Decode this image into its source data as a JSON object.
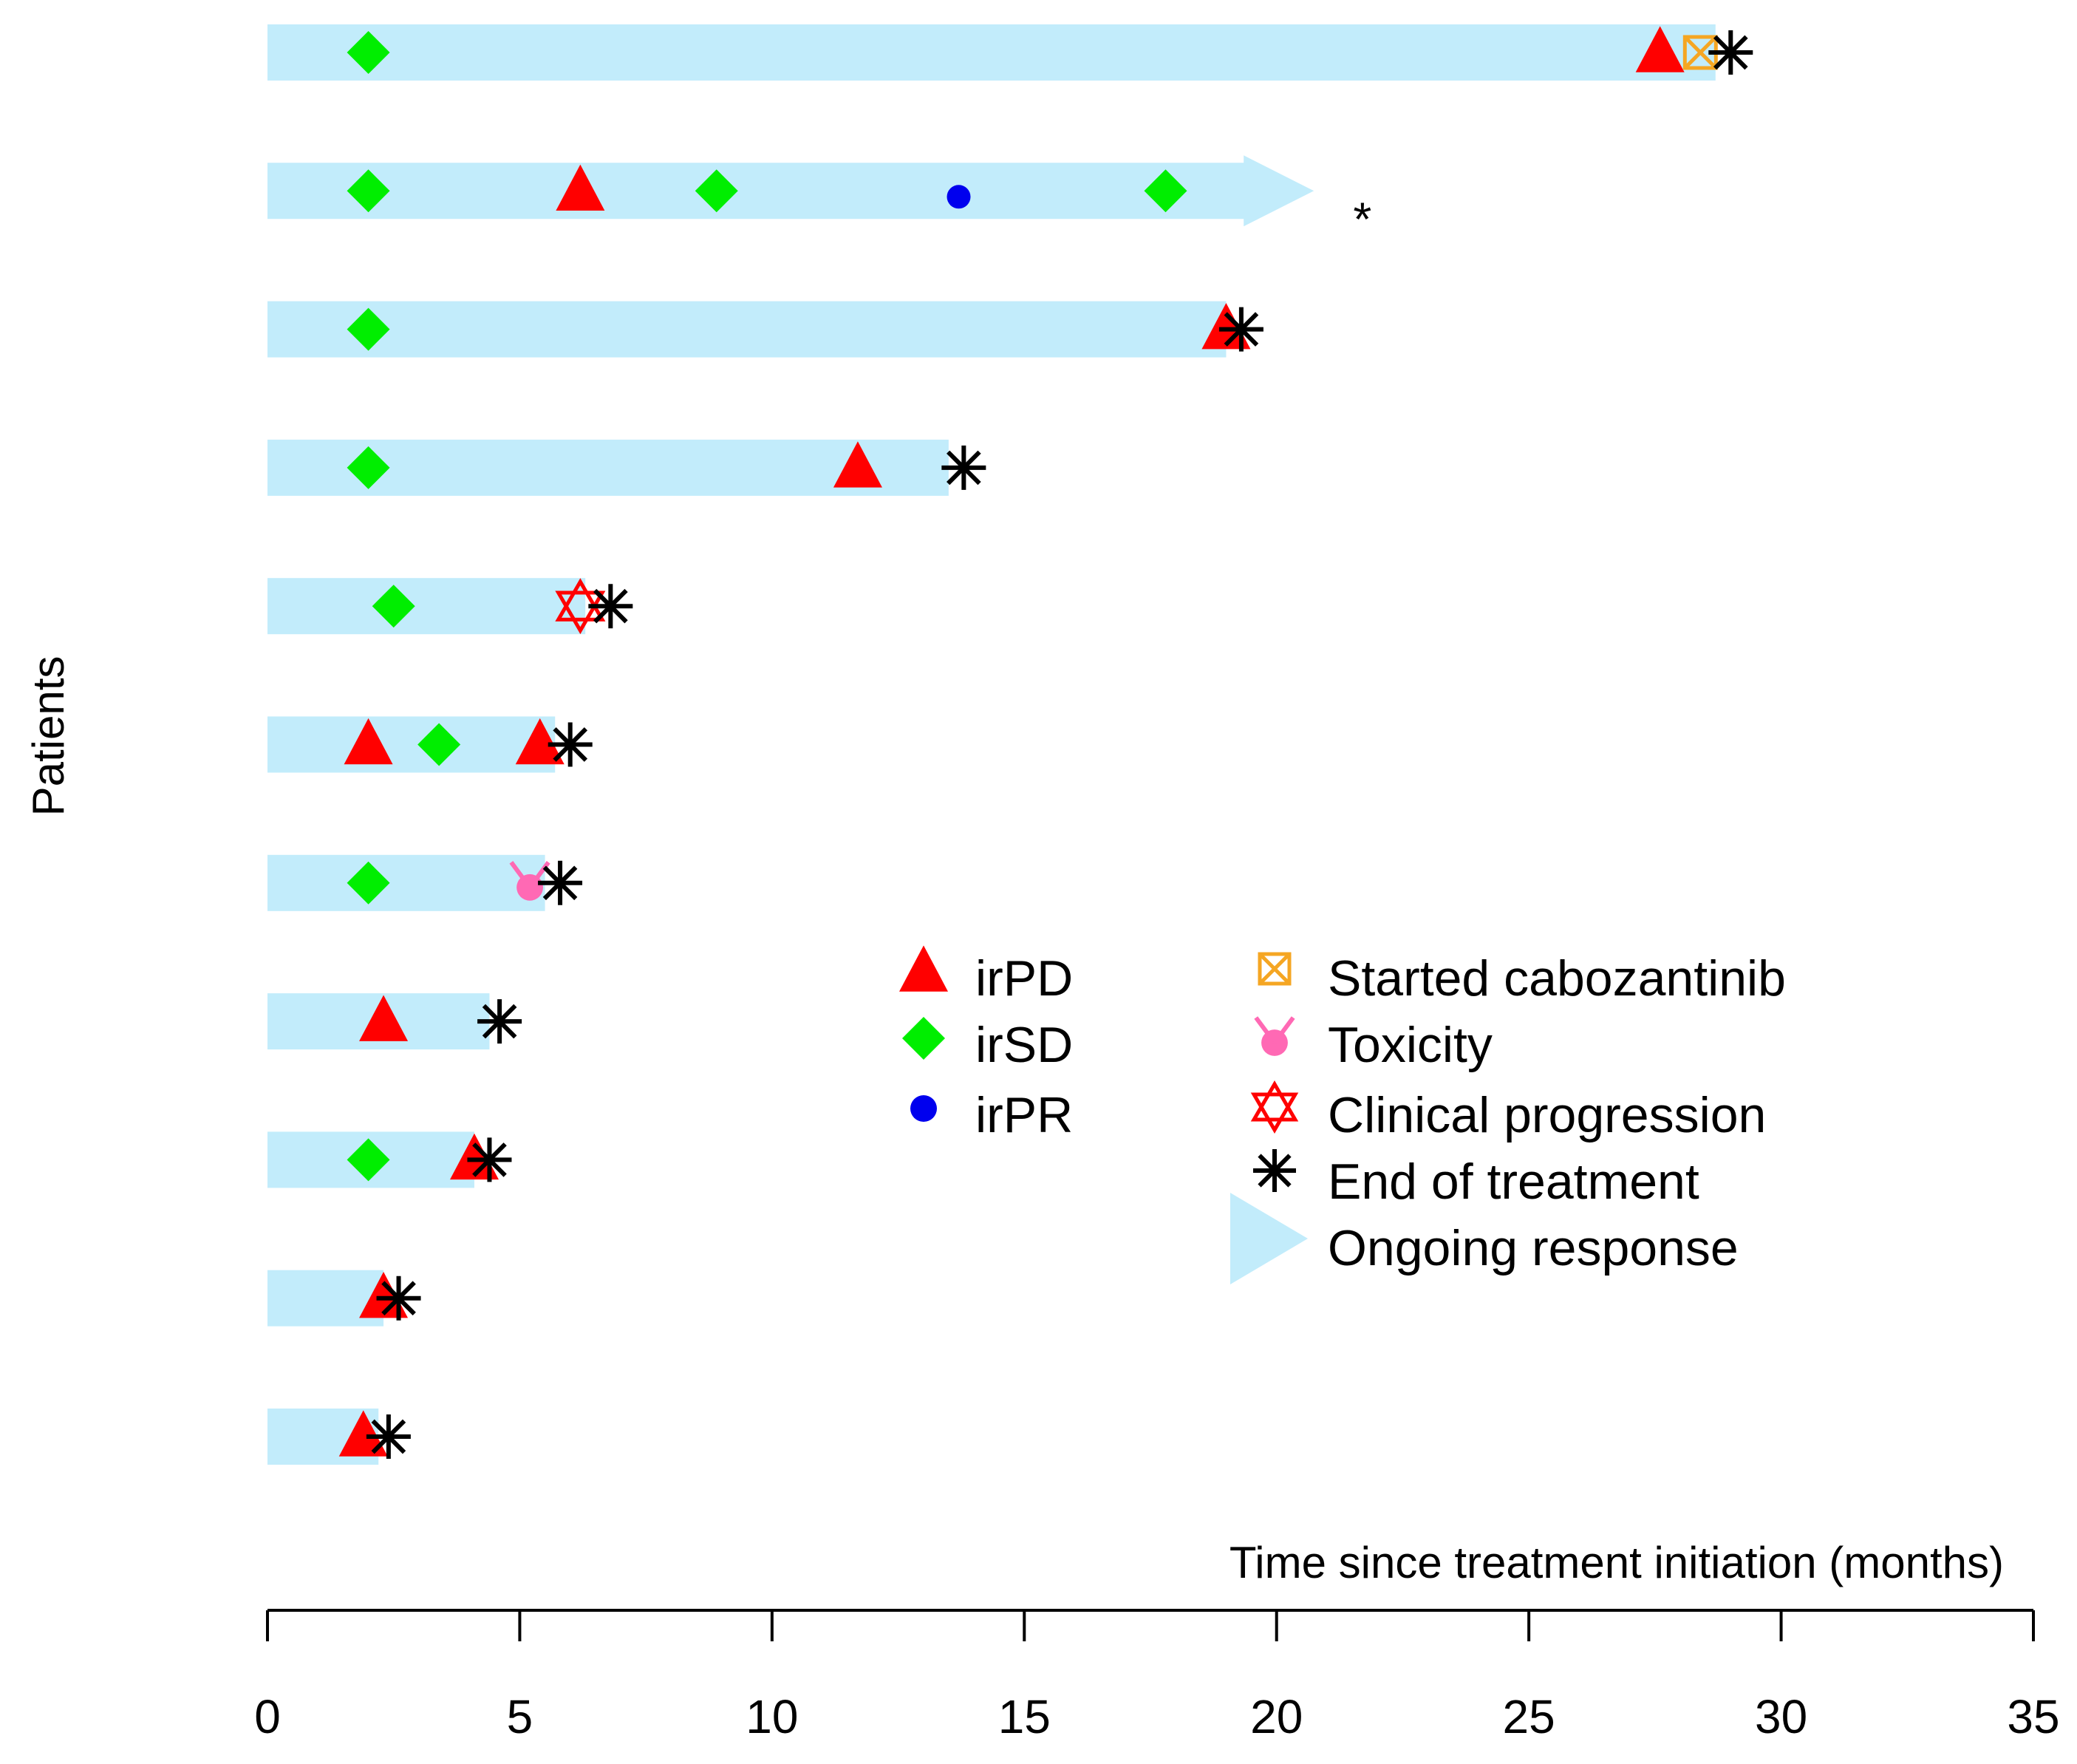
{
  "chart_data": {
    "type": "swimmer",
    "xlabel": "Time since treatment initiation (months)",
    "ylabel": "Patients",
    "xlim": [
      0,
      35
    ],
    "xticks": [
      0,
      5,
      10,
      15,
      20,
      25,
      30,
      35
    ],
    "colors": {
      "bar": "#c2ecfb",
      "irPD": "#ff0000",
      "irSD": "#00ee00",
      "irPR": "#0000ee",
      "cabo": "#f5a623",
      "toxicity": "#ff69b4",
      "clinical": "#ff0000",
      "eot": "#000000"
    },
    "patients": [
      {
        "duration": 28.7,
        "ongoing": false,
        "irSD": [
          2.0
        ],
        "irPD": [
          27.6
        ],
        "irPR": [],
        "cabo": [
          28.4
        ],
        "toxicity": [],
        "clinical": [],
        "eot": 29.0
      },
      {
        "duration": 20.3,
        "ongoing": true,
        "irSD": [
          2.0,
          8.9,
          17.8
        ],
        "irPD": [
          6.2
        ],
        "irPR": [
          13.7
        ],
        "cabo": [],
        "toxicity": [],
        "clinical": [],
        "eot": null
      },
      {
        "duration": 19.0,
        "ongoing": false,
        "irSD": [
          2.0
        ],
        "irPD": [
          19.0
        ],
        "irPR": [],
        "cabo": [],
        "toxicity": [],
        "clinical": [],
        "eot": 19.3
      },
      {
        "duration": 13.5,
        "ongoing": false,
        "irSD": [
          2.0
        ],
        "irPD": [
          11.7
        ],
        "irPR": [],
        "cabo": [],
        "toxicity": [],
        "clinical": [],
        "eot": 13.8
      },
      {
        "duration": 6.3,
        "ongoing": false,
        "irSD": [
          2.5
        ],
        "irPD": [],
        "irPR": [],
        "cabo": [],
        "toxicity": [],
        "clinical": [
          6.2
        ],
        "eot": 6.8
      },
      {
        "duration": 5.7,
        "ongoing": false,
        "irSD": [
          3.4
        ],
        "irPD": [
          2.0,
          5.4
        ],
        "irPR": [],
        "cabo": [],
        "toxicity": [],
        "clinical": [],
        "eot": 6.0
      },
      {
        "duration": 5.5,
        "ongoing": false,
        "irSD": [
          2.0
        ],
        "irPD": [],
        "irPR": [],
        "cabo": [],
        "toxicity": [
          5.2
        ],
        "clinical": [],
        "eot": 5.8
      },
      {
        "duration": 4.4,
        "ongoing": false,
        "irSD": [],
        "irPD": [
          2.3
        ],
        "irPR": [],
        "cabo": [],
        "toxicity": [],
        "clinical": [],
        "eot": 4.6
      },
      {
        "duration": 4.1,
        "ongoing": false,
        "irSD": [
          2.0
        ],
        "irPD": [
          4.1
        ],
        "irPR": [],
        "cabo": [],
        "toxicity": [],
        "clinical": [],
        "eot": 4.4
      },
      {
        "duration": 2.3,
        "ongoing": false,
        "irSD": [],
        "irPD": [
          2.3
        ],
        "irPR": [],
        "cabo": [],
        "toxicity": [],
        "clinical": [],
        "eot": 2.6
      },
      {
        "duration": 2.2,
        "ongoing": false,
        "irSD": [],
        "irPD": [
          1.9
        ],
        "irPR": [],
        "cabo": [],
        "toxicity": [],
        "clinical": [],
        "eot": 2.4
      }
    ],
    "annotations": [
      {
        "text": "*",
        "x": 21.7,
        "patient": 1
      }
    ],
    "legend": {
      "col1": [
        {
          "symbol": "irPD",
          "label": "irPD"
        },
        {
          "symbol": "irSD",
          "label": "irSD"
        },
        {
          "symbol": "irPR",
          "label": "irPR"
        }
      ],
      "col2": [
        {
          "symbol": "cabo",
          "label": "Started cabozantinib"
        },
        {
          "symbol": "toxicity",
          "label": "Toxicity"
        },
        {
          "symbol": "clinical",
          "label": "Clinical progression"
        },
        {
          "symbol": "eot",
          "label": "End of treatment"
        },
        {
          "symbol": "ongoing",
          "label": "Ongoing response"
        }
      ]
    }
  }
}
